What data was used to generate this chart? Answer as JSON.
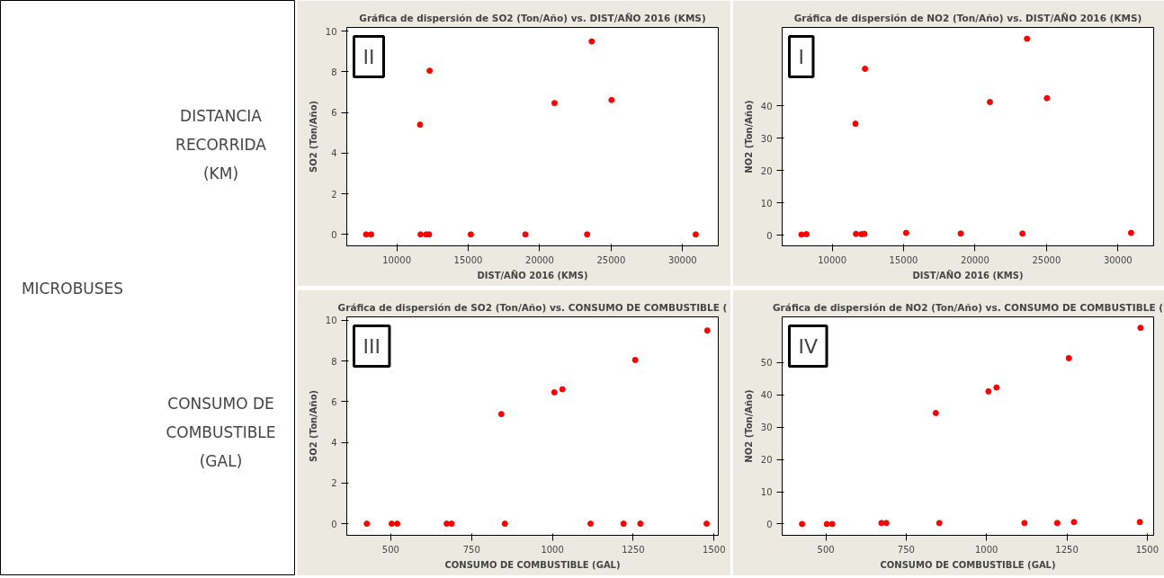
{
  "chart_data": [
    {
      "type": "other",
      "annotations": [
        "MICROBUSES",
        "DISTANCIA RECORRIDA (KM)",
        "CONSUMO DE COMBUSTIBLE (GAL)"
      ]
    },
    {
      "type": "scatter",
      "title": "Gráfica de dispersión de SO2 (Ton/Año) vs. DIST/AÑO 2016 (KMS)",
      "xlabel": "DIST/AÑO 2016 (KMS)",
      "ylabel": "SO2 (Ton/Año)",
      "annotations": [
        "II"
      ],
      "x": [
        7850,
        8200,
        11630,
        11670,
        12050,
        12260,
        12300,
        15180,
        19000,
        21040,
        23320,
        23640,
        25030,
        30920
      ],
      "series": [
        {
          "color": "#ff0000",
          "values": [
            0,
            0,
            5.4,
            0,
            0,
            0,
            8.05,
            0,
            0,
            6.46,
            0,
            9.49,
            6.61,
            0
          ]
        }
      ],
      "xlim": [
        6500,
        32500
      ],
      "xticks": [
        10000,
        15000,
        20000,
        25000,
        30000
      ],
      "ylim": [
        -0.56,
        10.18
      ],
      "yticks": [
        0,
        2,
        4,
        6,
        8,
        10
      ],
      "marker": "circle",
      "grid": false
    },
    {
      "type": "scatter",
      "title": "Gráfica de dispersión de NO2 (Ton/Año) vs. DIST/AÑO 2016 (KMS)",
      "xlabel": "DIST/AÑO 2016 (KMS)",
      "ylabel": "NO2 (Ton/Año)",
      "annotations": [
        "I"
      ],
      "x": [
        7850,
        8200,
        11630,
        11670,
        12050,
        12260,
        12300,
        15180,
        19000,
        21040,
        23320,
        23640,
        25030,
        30920
      ],
      "series": [
        {
          "color": "#ff0000",
          "values": [
            0.2,
            0.3,
            34.5,
            0.4,
            0.3,
            0.4,
            51.5,
            0.7,
            0.5,
            41.2,
            0.5,
            60.8,
            42.4,
            0.7
          ]
        }
      ],
      "xlim": [
        6500,
        32500
      ],
      "xticks": [
        10000,
        15000,
        20000,
        25000,
        30000
      ],
      "ylim": [
        -3.3,
        64.3
      ],
      "yticks": [
        0,
        10,
        20,
        30,
        40
      ],
      "marker": "circle",
      "grid": false
    },
    {
      "type": "scatter",
      "title": "Gráfica de dispersión de SO2 (Ton/Año) vs. CONSUMO DE COMBUSTIBLE (",
      "xlabel": "CONSUMO DE COMBUSTIBLE (GAL)",
      "ylabel": "SO2 (Ton/Año)",
      "annotations": [
        "III"
      ],
      "x": [
        426,
        503,
        520,
        673,
        688,
        842,
        853,
        1006,
        1031,
        1118,
        1220,
        1256,
        1272,
        1477,
        1479
      ],
      "series": [
        {
          "color": "#ff0000",
          "values": [
            0,
            0,
            0,
            0,
            0,
            5.39,
            0,
            6.46,
            6.61,
            0,
            0,
            8.05,
            0,
            0,
            9.5
          ]
        }
      ],
      "xlim": [
        364,
        1513
      ],
      "xticks": [
        500,
        750,
        1000,
        1250,
        1500
      ],
      "ylim": [
        -0.57,
        10.17
      ],
      "yticks": [
        0,
        2,
        4,
        6,
        8,
        10
      ],
      "marker": "circle",
      "grid": false
    },
    {
      "type": "scatter",
      "title": "Gráfica de dispersión de NO2 (Ton/Año) vs. CONSUMO DE COMBUSTIBLE (",
      "xlabel": "CONSUMO DE COMBUSTIBLE (GAL)",
      "ylabel": "NO2 (Ton/Año)",
      "annotations": [
        "IV"
      ],
      "x": [
        426,
        503,
        520,
        673,
        688,
        842,
        853,
        1006,
        1031,
        1118,
        1220,
        1256,
        1272,
        1477,
        1479
      ],
      "series": [
        {
          "color": "#ff0000",
          "values": [
            0,
            0,
            0,
            0.3,
            0.3,
            34.4,
            0.3,
            41.1,
            42.3,
            0.3,
            0.3,
            51.4,
            0.6,
            0.6,
            60.8
          ]
        }
      ],
      "xlim": [
        364,
        1520
      ],
      "xticks": [
        500,
        750,
        1000,
        1250,
        1500
      ],
      "ylim": [
        -3.5,
        64.2
      ],
      "yticks": [
        0,
        10,
        20,
        30,
        40,
        50
      ],
      "marker": "circle",
      "grid": false
    }
  ]
}
